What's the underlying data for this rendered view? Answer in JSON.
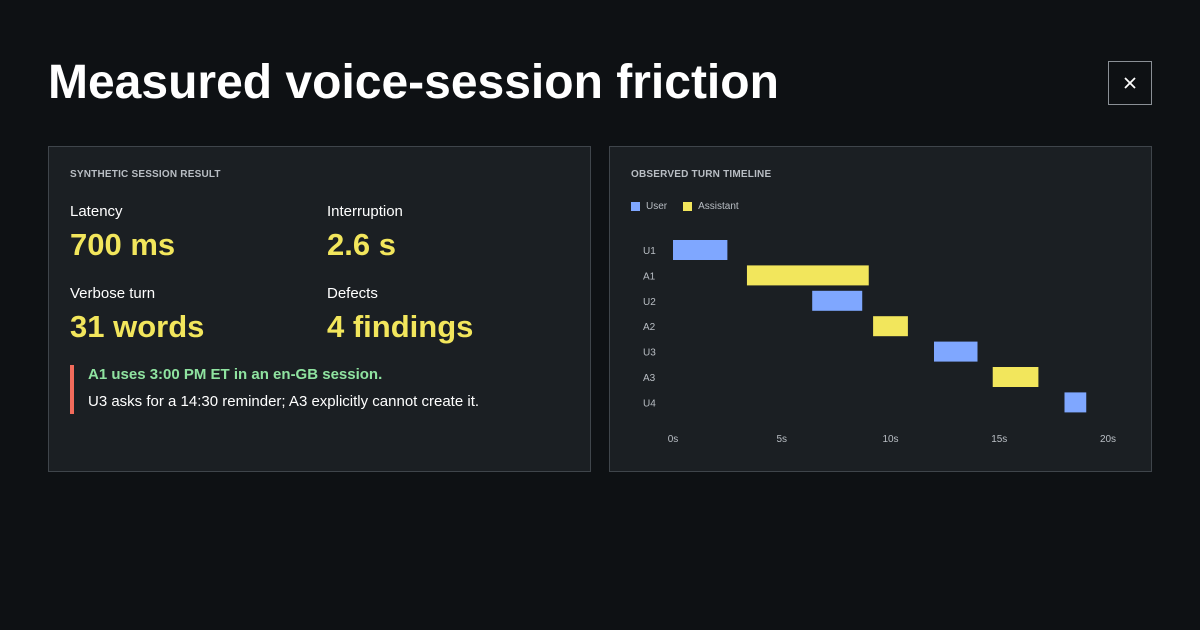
{
  "title": "Measured voice-session friction",
  "close_icon": "close-icon",
  "session_result": {
    "label": "SYNTHETIC SESSION RESULT",
    "metrics": [
      {
        "label": "Latency",
        "value": "700 ms"
      },
      {
        "label": "Interruption",
        "value": "2.6 s"
      },
      {
        "label": "Verbose turn",
        "value": "31 words"
      },
      {
        "label": "Defects",
        "value": "4 findings"
      }
    ],
    "finding": {
      "headline": "A1 uses 3:00 PM ET in an en-GB session.",
      "detail": "U3 asks for a 14:30 reminder; A3 explicitly cannot create it."
    }
  },
  "timeline": {
    "label": "OBSERVED TURN TIMELINE",
    "legend": [
      {
        "name": "User",
        "color": "#7fa7ff"
      },
      {
        "name": "Assistant",
        "color": "#f2e65c"
      }
    ]
  },
  "chart_data": {
    "type": "bar",
    "title": "",
    "xlabel": "",
    "ylabel": "",
    "xlim": [
      0,
      20
    ],
    "x_ticks": [
      "0s",
      "5s",
      "10s",
      "15s",
      "20s"
    ],
    "grid": false,
    "legend_placement": "top-left",
    "turns": [
      {
        "label": "U1",
        "speaker": "User",
        "start": 0.0,
        "end": 2.5
      },
      {
        "label": "A1",
        "speaker": "Assistant",
        "start": 3.4,
        "end": 9.0
      },
      {
        "label": "U2",
        "speaker": "User",
        "start": 6.4,
        "end": 8.7
      },
      {
        "label": "A2",
        "speaker": "Assistant",
        "start": 9.2,
        "end": 10.8
      },
      {
        "label": "U3",
        "speaker": "User",
        "start": 12.0,
        "end": 14.0
      },
      {
        "label": "A3",
        "speaker": "Assistant",
        "start": 14.7,
        "end": 16.8
      },
      {
        "label": "U4",
        "speaker": "User",
        "start": 18.0,
        "end": 19.0
      }
    ]
  }
}
